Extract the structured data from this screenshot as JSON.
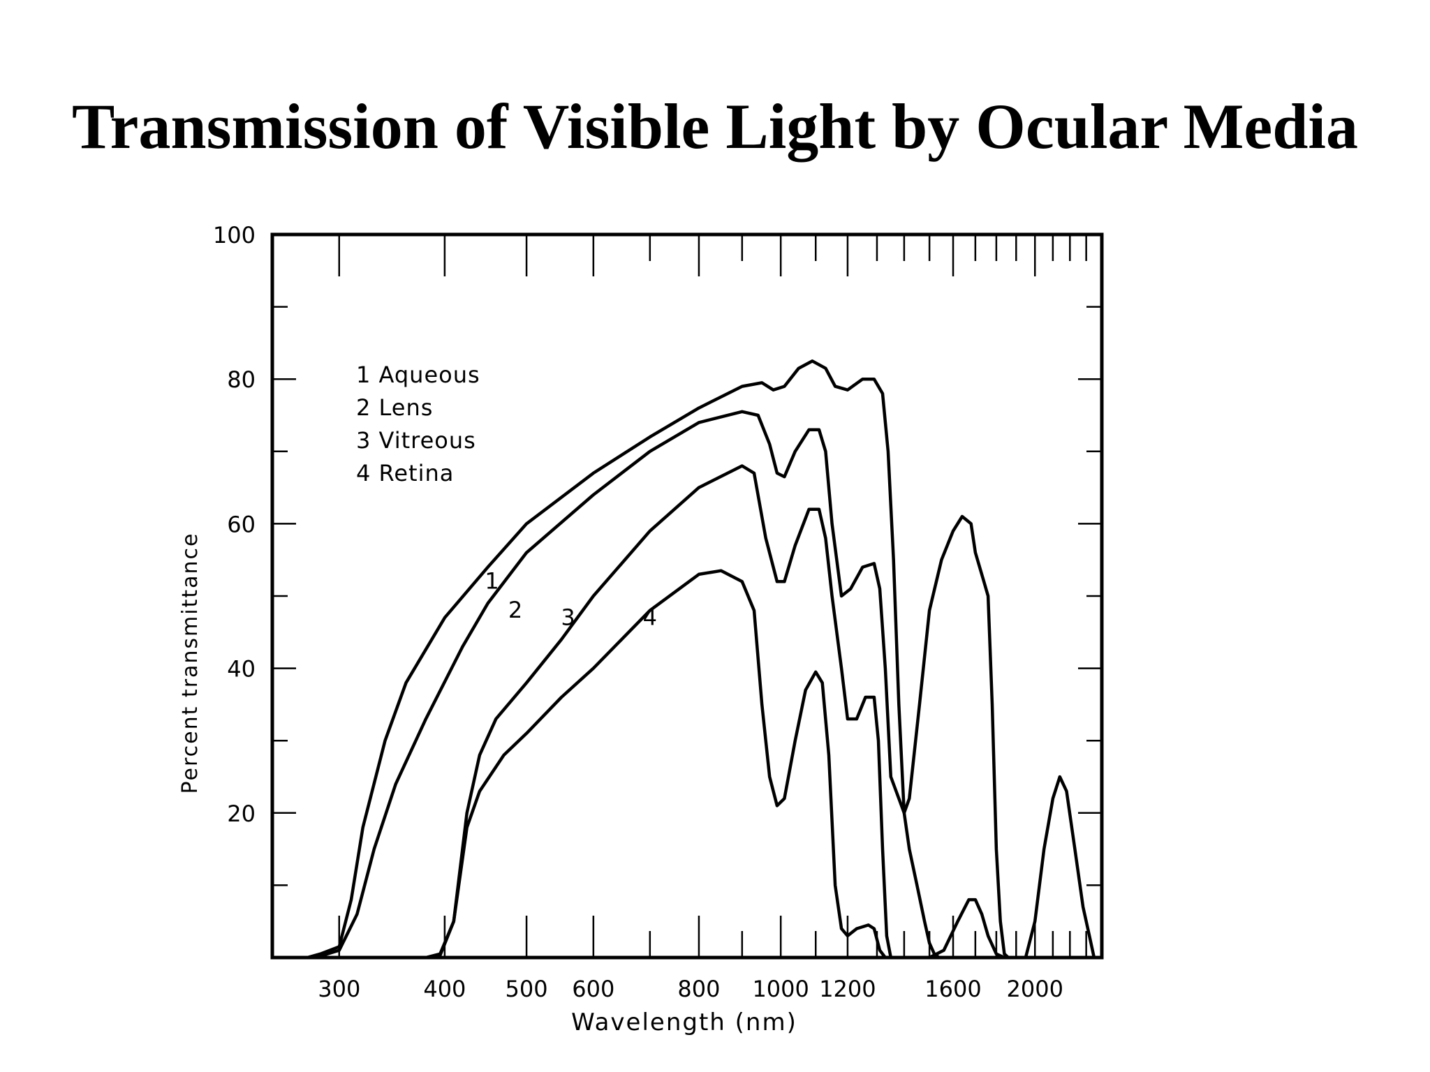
{
  "slide": {
    "title": "Transmission of Visible Light by Ocular Media"
  },
  "chart_data": {
    "type": "line",
    "title": "",
    "xlabel": "Wavelength (nm)",
    "ylabel": "Percent transmittance",
    "x_scale": "log",
    "xlim": [
      250,
      2400
    ],
    "ylim": [
      0,
      100
    ],
    "x_tick_labels": [
      {
        "value": 300,
        "label": "300"
      },
      {
        "value": 400,
        "label": "400"
      },
      {
        "value": 500,
        "label": "500"
      },
      {
        "value": 600,
        "label": "600"
      },
      {
        "value": 800,
        "label": "800"
      },
      {
        "value": 1000,
        "label": "1000"
      },
      {
        "value": 1200,
        "label": "1200"
      },
      {
        "value": 1600,
        "label": "1600"
      },
      {
        "value": 2000,
        "label": "2000"
      }
    ],
    "y_tick_labels": [
      {
        "value": 20,
        "label": "20"
      },
      {
        "value": 40,
        "label": "40"
      },
      {
        "value": 60,
        "label": "60"
      },
      {
        "value": 80,
        "label": "80"
      },
      {
        "value": 100,
        "label": "100"
      }
    ],
    "legend": {
      "placement": "upper-left inside plot",
      "entries": [
        "1  Aqueous",
        "2  Lens",
        "3  Vitreous",
        "4 Retina"
      ]
    },
    "series": [
      {
        "name": "Aqueous",
        "label": "1",
        "points": [
          [
            275,
            0
          ],
          [
            285,
            0.5
          ],
          [
            300,
            1.5
          ],
          [
            310,
            8
          ],
          [
            320,
            18
          ],
          [
            340,
            30
          ],
          [
            360,
            38
          ],
          [
            400,
            47
          ],
          [
            450,
            54
          ],
          [
            500,
            60
          ],
          [
            600,
            67
          ],
          [
            700,
            72
          ],
          [
            800,
            76
          ],
          [
            900,
            79
          ],
          [
            950,
            79.5
          ],
          [
            980,
            78.5
          ],
          [
            1010,
            79
          ],
          [
            1050,
            81.5
          ],
          [
            1090,
            82.5
          ],
          [
            1130,
            81.5
          ],
          [
            1160,
            79
          ],
          [
            1200,
            78.5
          ],
          [
            1250,
            80
          ],
          [
            1290,
            80
          ],
          [
            1320,
            78
          ],
          [
            1340,
            70
          ],
          [
            1360,
            55
          ],
          [
            1380,
            35
          ],
          [
            1400,
            20
          ],
          [
            1420,
            15
          ],
          [
            1450,
            10
          ],
          [
            1480,
            5
          ],
          [
            1500,
            2
          ],
          [
            1520,
            0.5
          ],
          [
            1540,
            0
          ]
        ]
      },
      {
        "name": "Lens",
        "label": "2",
        "points": [
          [
            275,
            0
          ],
          [
            285,
            0.2
          ],
          [
            300,
            1
          ],
          [
            315,
            6
          ],
          [
            330,
            15
          ],
          [
            350,
            24
          ],
          [
            380,
            33
          ],
          [
            420,
            43
          ],
          [
            450,
            49
          ],
          [
            500,
            56
          ],
          [
            600,
            64
          ],
          [
            700,
            70
          ],
          [
            800,
            74
          ],
          [
            900,
            75.5
          ],
          [
            940,
            75
          ],
          [
            970,
            71
          ],
          [
            990,
            67
          ],
          [
            1010,
            66.5
          ],
          [
            1040,
            70
          ],
          [
            1080,
            73
          ],
          [
            1110,
            73
          ],
          [
            1130,
            70
          ],
          [
            1150,
            60
          ],
          [
            1180,
            50
          ],
          [
            1210,
            51
          ],
          [
            1250,
            54
          ],
          [
            1290,
            54.5
          ],
          [
            1310,
            51
          ],
          [
            1330,
            40
          ],
          [
            1350,
            25
          ],
          [
            1380,
            22
          ],
          [
            1400,
            20
          ],
          [
            1420,
            22
          ],
          [
            1460,
            35
          ],
          [
            1500,
            48
          ],
          [
            1550,
            55
          ],
          [
            1600,
            59
          ],
          [
            1640,
            61
          ],
          [
            1680,
            60
          ],
          [
            1700,
            56
          ],
          [
            1740,
            52
          ],
          [
            1760,
            50
          ],
          [
            1780,
            35
          ],
          [
            1800,
            15
          ],
          [
            1820,
            5
          ],
          [
            1840,
            0.5
          ],
          [
            1860,
            0
          ],
          [
            1950,
            0
          ],
          [
            2000,
            5
          ],
          [
            2050,
            15
          ],
          [
            2100,
            22
          ],
          [
            2140,
            25
          ],
          [
            2180,
            23
          ],
          [
            2230,
            15
          ],
          [
            2280,
            7
          ],
          [
            2320,
            3
          ],
          [
            2350,
            0
          ]
        ]
      },
      {
        "name": "Vitreous",
        "label": "3",
        "points": [
          [
            380,
            0
          ],
          [
            395,
            0.5
          ],
          [
            410,
            5
          ],
          [
            425,
            20
          ],
          [
            440,
            28
          ],
          [
            460,
            33
          ],
          [
            500,
            38
          ],
          [
            550,
            44
          ],
          [
            600,
            50
          ],
          [
            700,
            59
          ],
          [
            800,
            65
          ],
          [
            900,
            68
          ],
          [
            930,
            67
          ],
          [
            960,
            58
          ],
          [
            990,
            52
          ],
          [
            1010,
            52
          ],
          [
            1040,
            57
          ],
          [
            1080,
            62
          ],
          [
            1110,
            62
          ],
          [
            1130,
            58
          ],
          [
            1150,
            50
          ],
          [
            1180,
            40
          ],
          [
            1200,
            33
          ],
          [
            1230,
            33
          ],
          [
            1260,
            36
          ],
          [
            1290,
            36
          ],
          [
            1305,
            30
          ],
          [
            1320,
            15
          ],
          [
            1335,
            3
          ],
          [
            1350,
            0
          ],
          [
            1500,
            0
          ],
          [
            1560,
            1
          ],
          [
            1620,
            5
          ],
          [
            1670,
            8
          ],
          [
            1700,
            8
          ],
          [
            1730,
            6
          ],
          [
            1760,
            3
          ],
          [
            1800,
            0.5
          ],
          [
            1840,
            0
          ]
        ]
      },
      {
        "name": "Retina",
        "label": "4",
        "points": [
          [
            380,
            0
          ],
          [
            395,
            0.3
          ],
          [
            410,
            5
          ],
          [
            425,
            18
          ],
          [
            440,
            23
          ],
          [
            470,
            28
          ],
          [
            500,
            31
          ],
          [
            550,
            36
          ],
          [
            600,
            40
          ],
          [
            700,
            48
          ],
          [
            800,
            53
          ],
          [
            850,
            53.5
          ],
          [
            900,
            52
          ],
          [
            930,
            48
          ],
          [
            950,
            35
          ],
          [
            970,
            25
          ],
          [
            990,
            21
          ],
          [
            1010,
            22
          ],
          [
            1040,
            30
          ],
          [
            1070,
            37
          ],
          [
            1100,
            39.5
          ],
          [
            1120,
            38
          ],
          [
            1140,
            28
          ],
          [
            1160,
            10
          ],
          [
            1180,
            4
          ],
          [
            1200,
            3
          ],
          [
            1230,
            4
          ],
          [
            1270,
            4.5
          ],
          [
            1290,
            4
          ],
          [
            1310,
            1
          ],
          [
            1330,
            0
          ]
        ]
      }
    ]
  }
}
